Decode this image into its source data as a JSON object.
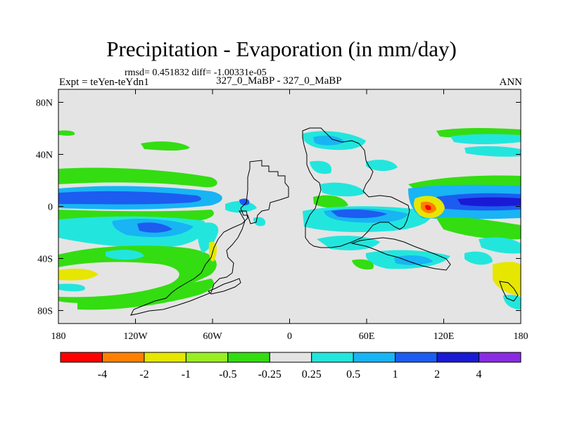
{
  "chart_data": {
    "type": "heatmap",
    "title": "Precipitation - Evaporation (in mm/day)",
    "stats_text": "rmsd= 0.451832 diff= -1.00331e-05",
    "left_label": "Expt = teYen-teYdn1",
    "center_label": "327_0_MaBP - 327_0_MaBP",
    "right_label": "ANN",
    "x_ticks": [
      "180",
      "120W",
      "60W",
      "0",
      "60E",
      "120E",
      "180"
    ],
    "x_tick_values": [
      -180,
      -120,
      -60,
      0,
      60,
      120,
      180
    ],
    "y_ticks": [
      "80N",
      "40N",
      "0",
      "40S",
      "80S"
    ],
    "y_tick_values": [
      80,
      40,
      0,
      -40,
      -80
    ],
    "xlim": [
      -180,
      180
    ],
    "ylim": [
      -90,
      90
    ],
    "colorbar": {
      "labels": [
        "-4",
        "-2",
        "-1",
        "-0.5",
        "-0.25",
        "0.25",
        "0.5",
        "1",
        "2",
        "4"
      ],
      "colors": [
        "#ff0000",
        "#ff8000",
        "#e6e600",
        "#99ee22",
        "#33dd11",
        "#e4e4e4",
        "#22e6dd",
        "#18b4f4",
        "#1c5cf0",
        "#1a1ad4",
        "#8a2be2"
      ]
    },
    "fill_color": "#e4e4e4",
    "features": [
      {
        "name": "equatorial-pacific-positive-band",
        "lat": 5,
        "lon_range": [
          -180,
          -80
        ],
        "sign": "positive",
        "max_level": "2"
      },
      {
        "name": "south-pacific-negative-band",
        "lat": -12,
        "lon_range": [
          -180,
          -80
        ],
        "sign": "negative",
        "min_level": "-0.5"
      },
      {
        "name": "indian-ocean-positive-band",
        "lat": -8,
        "lon_range": [
          20,
          100
        ],
        "sign": "positive",
        "max_level": "2"
      },
      {
        "name": "west-pacific-warm-pool-minimum",
        "lat": 0,
        "lon": 110,
        "sign": "negative",
        "min_level": "-4"
      },
      {
        "name": "equatorial-east-pacific-positive-band",
        "lat": 5,
        "lon_range": [
          110,
          180
        ],
        "sign": "positive",
        "max_level": "4"
      }
    ]
  }
}
